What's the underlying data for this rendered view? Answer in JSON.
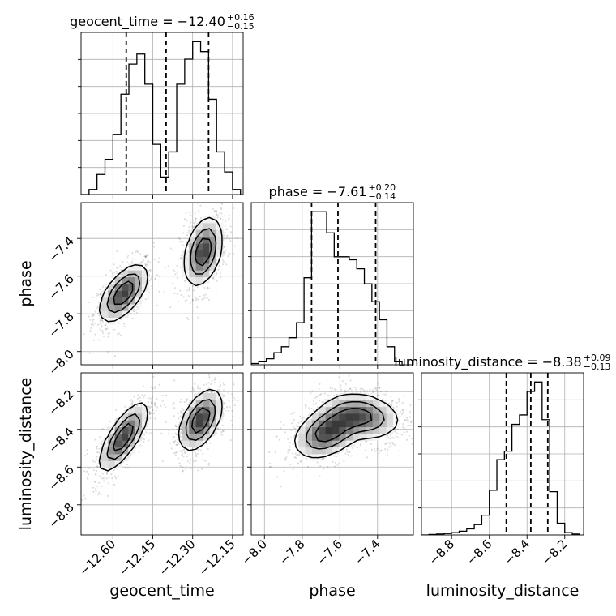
{
  "chart_data": {
    "type": "corner",
    "parameters": [
      "geocent_time",
      "phase",
      "luminosity_distance"
    ],
    "axes": {
      "geocent_time": {
        "label": "geocent_time",
        "range": [
          -12.72,
          -12.11
        ],
        "ticks": [
          -12.6,
          -12.45,
          -12.3,
          -12.15
        ],
        "tick_labels": [
          "−12.60",
          "−12.45",
          "−12.30",
          "−12.15"
        ]
      },
      "phase": {
        "label": "phase",
        "range": [
          -8.07,
          -7.21
        ],
        "ticks": [
          -8.0,
          -7.8,
          -7.6,
          -7.4
        ],
        "tick_labels": [
          "−8.0",
          "−7.8",
          "−7.6",
          "−7.4"
        ]
      },
      "luminosity_distance": {
        "label": "luminosity_distance",
        "range": [
          -8.96,
          -8.1
        ],
        "ticks": [
          -8.8,
          -8.6,
          -8.4,
          -8.2
        ],
        "tick_labels": [
          "−8.8",
          "−8.6",
          "−8.4",
          "−8.2"
        ]
      }
    },
    "titles": [
      {
        "param": "geocent_time",
        "prefix": "geocent_time = −12.40",
        "sup": "+0.16",
        "sub": "−0.15"
      },
      {
        "param": "phase",
        "prefix": "phase = −7.61",
        "sup": "+0.20",
        "sub": "−0.14"
      },
      {
        "param": "luminosity_distance",
        "prefix": "luminosity_distance = −8.38",
        "sup": "+0.09",
        "sub": "−0.13"
      }
    ],
    "histograms": {
      "geocent_time": {
        "bin_edges": [
          -12.72,
          -12.69,
          -12.66,
          -12.63,
          -12.6,
          -12.57,
          -12.54,
          -12.51,
          -12.48,
          -12.45,
          -12.42,
          -12.39,
          -12.36,
          -12.33,
          -12.3,
          -12.27,
          -12.24,
          -12.21,
          -12.18,
          -12.15,
          -12.12
        ],
        "counts": [
          0,
          0.1,
          0.4,
          0.7,
          1.2,
          2.0,
          2.6,
          2.8,
          2.2,
          1.0,
          0.35,
          0.85,
          2.2,
          2.7,
          3.05,
          2.85,
          1.9,
          0.85,
          0.45,
          0.1
        ],
        "quantiles": [
          -12.55,
          -12.4,
          -12.24
        ]
      },
      "phase": {
        "bin_edges": [
          -8.07,
          -8.03,
          -7.99,
          -7.95,
          -7.91,
          -7.87,
          -7.83,
          -7.79,
          -7.75,
          -7.71,
          -7.67,
          -7.63,
          -7.59,
          -7.55,
          -7.51,
          -7.47,
          -7.43,
          -7.39,
          -7.35,
          -7.31,
          -7.27
        ],
        "counts": [
          0.02,
          0.05,
          0.1,
          0.2,
          0.3,
          0.45,
          0.7,
          1.45,
          2.55,
          2.55,
          2.2,
          1.8,
          1.8,
          1.75,
          1.6,
          1.35,
          1.05,
          0.75,
          0.3,
          0.05
        ],
        "quantiles": [
          -7.75,
          -7.61,
          -7.41
        ]
      },
      "luminosity_distance": {
        "bin_edges": [
          -8.96,
          -8.92,
          -8.88,
          -8.84,
          -8.8,
          -8.76,
          -8.72,
          -8.68,
          -8.64,
          -8.6,
          -8.56,
          -8.52,
          -8.48,
          -8.44,
          -8.4,
          -8.36,
          -8.32,
          -8.28,
          -8.24,
          -8.2,
          -8.16,
          -8.12
        ],
        "counts": [
          0,
          0.01,
          0.02,
          0.03,
          0.05,
          0.08,
          0.13,
          0.22,
          0.42,
          0.95,
          1.6,
          1.78,
          2.35,
          2.55,
          3.05,
          3.25,
          2.45,
          0.92,
          0.25,
          0.05,
          0.02
        ],
        "quantiles": [
          -8.51,
          -8.38,
          -8.29
        ]
      }
    },
    "contours": [
      {
        "x": "geocent_time",
        "y": "phase",
        "modes": [
          {
            "center": [
              -12.56,
              -7.69
            ],
            "sigma": [
              0.045,
              0.075
            ],
            "rho": 0.6,
            "weight": 1.0
          },
          {
            "center": [
              -12.26,
              -7.47
            ],
            "sigma": [
              0.035,
              0.09
            ],
            "rho": 0.35,
            "weight": 1.0
          }
        ]
      },
      {
        "x": "geocent_time",
        "y": "luminosity_distance",
        "modes": [
          {
            "center": [
              -12.56,
              -8.44
            ],
            "sigma": [
              0.045,
              0.09
            ],
            "rho": 0.75,
            "weight": 1.0
          },
          {
            "center": [
              -12.27,
              -8.35
            ],
            "sigma": [
              0.04,
              0.08
            ],
            "rho": 0.5,
            "weight": 1.0
          }
        ]
      },
      {
        "x": "phase",
        "y": "luminosity_distance",
        "modes": [
          {
            "center": [
              -7.66,
              -8.41
            ],
            "sigma": [
              0.09,
              0.07
            ],
            "rho": 0.4,
            "weight": 1.0
          },
          {
            "center": [
              -7.48,
              -8.33
            ],
            "sigma": [
              0.1,
              0.06
            ],
            "rho": -0.2,
            "weight": 0.8
          }
        ]
      }
    ],
    "grid": true
  }
}
